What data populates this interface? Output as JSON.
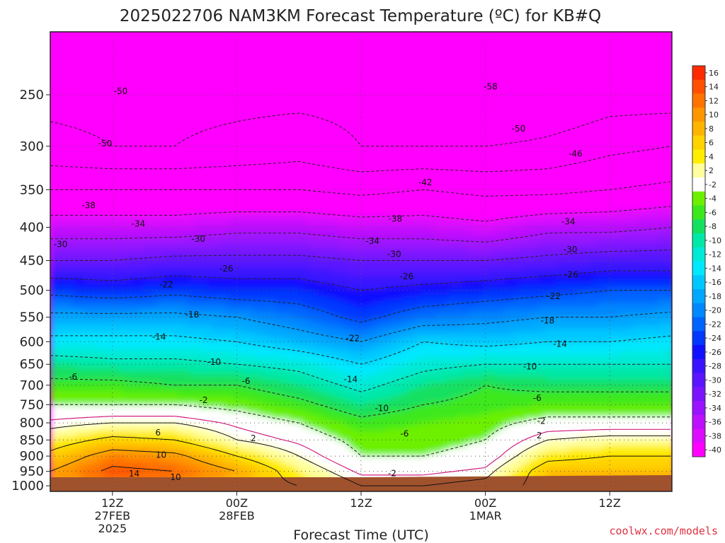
{
  "chart_data": {
    "type": "heatmap",
    "title": "2025022706 NAM3KM Forecast Temperature (ºC) for KB#Q",
    "xlabel": "Forecast Time (UTC)",
    "ylabel": "",
    "credit": "coolwx.com/models",
    "x_range_hours": [
      6,
      66
    ],
    "x_ticks": [
      {
        "hour": 12,
        "lines": [
          "12Z",
          "27FEB",
          "2025"
        ]
      },
      {
        "hour": 24,
        "lines": [
          "00Z",
          "28FEB"
        ]
      },
      {
        "hour": 36,
        "lines": [
          "12Z"
        ]
      },
      {
        "hour": 48,
        "lines": [
          "00Z",
          "1MAR"
        ]
      },
      {
        "hour": 60,
        "lines": [
          "12Z"
        ]
      }
    ],
    "y_range_hpa": [
      1020,
      200
    ],
    "y_scale": "log",
    "y_ticks": [
      250,
      300,
      350,
      400,
      450,
      500,
      550,
      600,
      650,
      700,
      750,
      800,
      850,
      900,
      950,
      1000
    ],
    "grid": "dotted",
    "colorbar": {
      "levels": [
        16,
        14,
        12,
        10,
        8,
        6,
        4,
        2,
        -2,
        -4,
        -6,
        -8,
        -10,
        -12,
        -14,
        -16,
        -18,
        -20,
        -22,
        -24,
        -26,
        -28,
        -30,
        -32,
        -34,
        -36,
        -38,
        -40
      ],
      "colors": [
        "#ff2a00",
        "#ff5000",
        "#ff7300",
        "#ff9600",
        "#ffb400",
        "#ffd200",
        "#ffee00",
        "#ffff9e",
        "#ffffff",
        "#6cf000",
        "#3ce81c",
        "#14e060",
        "#00e8a8",
        "#00ead8",
        "#00e8ff",
        "#00c8ff",
        "#00a8ff",
        "#0088ff",
        "#0064ff",
        "#0038ff",
        "#1010ff",
        "#3a12ff",
        "#5a14ff",
        "#7a14ff",
        "#9a12ff",
        "#bc10ff",
        "#dc0cff",
        "#ff00ff"
      ]
    },
    "contour_labels": [
      {
        "text": "-50",
        "hour": 12.8,
        "p": 247
      },
      {
        "text": "-50",
        "hour": 11.3,
        "p": 297
      },
      {
        "text": "-38",
        "hour": 9.7,
        "p": 370
      },
      {
        "text": "-34",
        "hour": 14.5,
        "p": 395
      },
      {
        "text": "-30",
        "hour": 7.0,
        "p": 425
      },
      {
        "text": "-30",
        "hour": 20.3,
        "p": 417
      },
      {
        "text": "-26",
        "hour": 23.0,
        "p": 463
      },
      {
        "text": "-22",
        "hour": 17.2,
        "p": 490
      },
      {
        "text": "-18",
        "hour": 19.7,
        "p": 545
      },
      {
        "text": "-14",
        "hour": 16.5,
        "p": 590
      },
      {
        "text": "-10",
        "hour": 21.8,
        "p": 645
      },
      {
        "text": "-6",
        "hour": 8.2,
        "p": 680
      },
      {
        "text": "-6",
        "hour": 24.9,
        "p": 690
      },
      {
        "text": "-2",
        "hour": 20.8,
        "p": 738
      },
      {
        "text": "-58",
        "hour": 48.5,
        "p": 243
      },
      {
        "text": "-50",
        "hour": 51.2,
        "p": 282
      },
      {
        "text": "-46",
        "hour": 56.7,
        "p": 308
      },
      {
        "text": "-42",
        "hour": 42.2,
        "p": 341
      },
      {
        "text": "-38",
        "hour": 39.3,
        "p": 388
      },
      {
        "text": "-34",
        "hour": 37.1,
        "p": 420
      },
      {
        "text": "-30",
        "hour": 39.2,
        "p": 440
      },
      {
        "text": "-26",
        "hour": 40.4,
        "p": 476
      },
      {
        "text": "-22",
        "hour": 35.2,
        "p": 593
      },
      {
        "text": "-14",
        "hour": 35.0,
        "p": 686
      },
      {
        "text": "-10",
        "hour": 38.0,
        "p": 760
      },
      {
        "text": "-6",
        "hour": 40.2,
        "p": 832
      },
      {
        "text": "-2",
        "hour": 39.0,
        "p": 957
      },
      {
        "text": "-34",
        "hour": 56.0,
        "p": 392
      },
      {
        "text": "-30",
        "hour": 56.2,
        "p": 433
      },
      {
        "text": "-26",
        "hour": 56.3,
        "p": 473
      },
      {
        "text": "-22",
        "hour": 54.6,
        "p": 511
      },
      {
        "text": "-18",
        "hour": 54.0,
        "p": 557
      },
      {
        "text": "-14",
        "hour": 55.2,
        "p": 605
      },
      {
        "text": "-10",
        "hour": 52.3,
        "p": 655
      },
      {
        "text": "-6",
        "hour": 53.0,
        "p": 733
      },
      {
        "text": "-2",
        "hour": 53.4,
        "p": 795
      },
      {
        "text": "2",
        "hour": 53.2,
        "p": 837
      },
      {
        "text": "2",
        "hour": 25.6,
        "p": 845
      },
      {
        "text": "6",
        "hour": 16.4,
        "p": 828
      },
      {
        "text": "10",
        "hour": 16.7,
        "p": 896
      },
      {
        "text": "14",
        "hour": 14.1,
        "p": 958
      },
      {
        "text": "10",
        "hour": 18.1,
        "p": 970
      }
    ]
  }
}
